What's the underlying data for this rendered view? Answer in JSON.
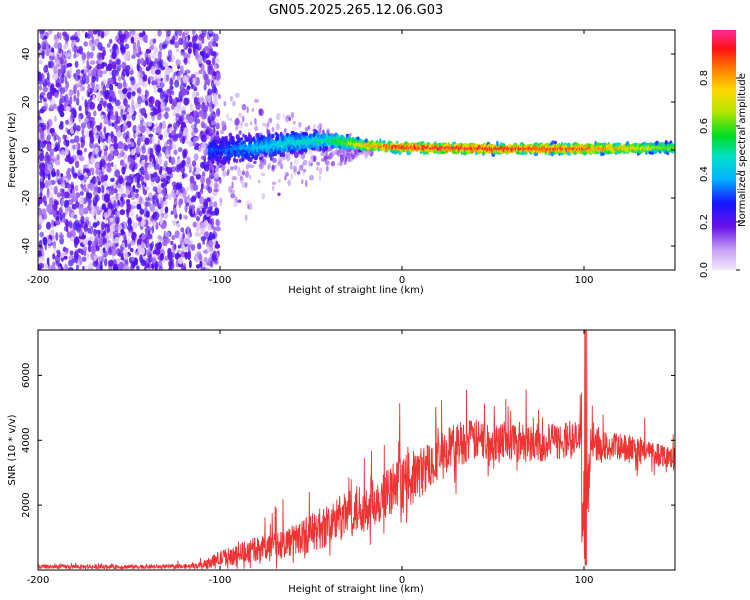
{
  "title": "GN05.2025.265.12.06.G03",
  "colors": {
    "snr_line": "#ee3333",
    "frame": "#000000",
    "background": "#ffffff",
    "scatter_sparse": "#7b1fe6",
    "scatter_light": "#c9a5f5"
  },
  "chart_data": [
    {
      "type": "heatmap",
      "name": "spectrogram",
      "xlabel": "Height of straight line (km)",
      "ylabel": "Frequency (Hz)",
      "xlim": [
        -200,
        150
      ],
      "ylim": [
        -50,
        50
      ],
      "xticks": [
        -200,
        -100,
        0,
        100
      ],
      "yticks": [
        -40,
        -20,
        0,
        20,
        40
      ],
      "colorbar": {
        "label": "Normalized spectral amplitude",
        "range": [
          0.0,
          1.0
        ],
        "ticks": [
          "0.0",
          "0.2",
          "0.4",
          "0.6",
          "0.8"
        ]
      },
      "ridge": {
        "description_free": true,
        "points": [
          {
            "x": -100,
            "y": 0,
            "amp": 0.3
          },
          {
            "x": -80,
            "y": 1,
            "amp": 0.4
          },
          {
            "x": -60,
            "y": 3,
            "amp": 0.45
          },
          {
            "x": -40,
            "y": 4,
            "amp": 0.5
          },
          {
            "x": -20,
            "y": 2,
            "amp": 0.75
          },
          {
            "x": 0,
            "y": 1,
            "amp": 0.9
          },
          {
            "x": 50,
            "y": 0.5,
            "amp": 0.9
          },
          {
            "x": 100,
            "y": 0.5,
            "amp": 0.85
          },
          {
            "x": 150,
            "y": 1,
            "amp": 0.6
          }
        ],
        "noise_region_x": [
          -200,
          -105
        ]
      }
    },
    {
      "type": "line",
      "name": "snr",
      "xlabel": "Height of straight line (km)",
      "ylabel": "SNR (10 * v/v)",
      "xlim": [
        -200,
        150
      ],
      "ylim": [
        0,
        7400
      ],
      "xticks": [
        -200,
        -100,
        0,
        100
      ],
      "yticks": [
        2000,
        4000,
        6000
      ],
      "envelope": {
        "x": [
          -200,
          -120,
          -110,
          -100,
          -80,
          -60,
          -40,
          -20,
          0,
          10,
          20,
          30,
          40,
          60,
          80,
          90,
          100,
          110,
          130,
          150
        ],
        "mean": [
          100,
          100,
          150,
          350,
          650,
          900,
          1400,
          2000,
          2600,
          3000,
          3500,
          3900,
          4000,
          4000,
          3900,
          4000,
          4000,
          3800,
          3700,
          3500
        ],
        "spread": [
          70,
          70,
          100,
          250,
          400,
          500,
          700,
          800,
          900,
          800,
          700,
          700,
          650,
          650,
          600,
          600,
          600,
          500,
          400,
          350
        ]
      },
      "spike": {
        "x": 101,
        "max": 7400,
        "min": 150
      }
    }
  ]
}
